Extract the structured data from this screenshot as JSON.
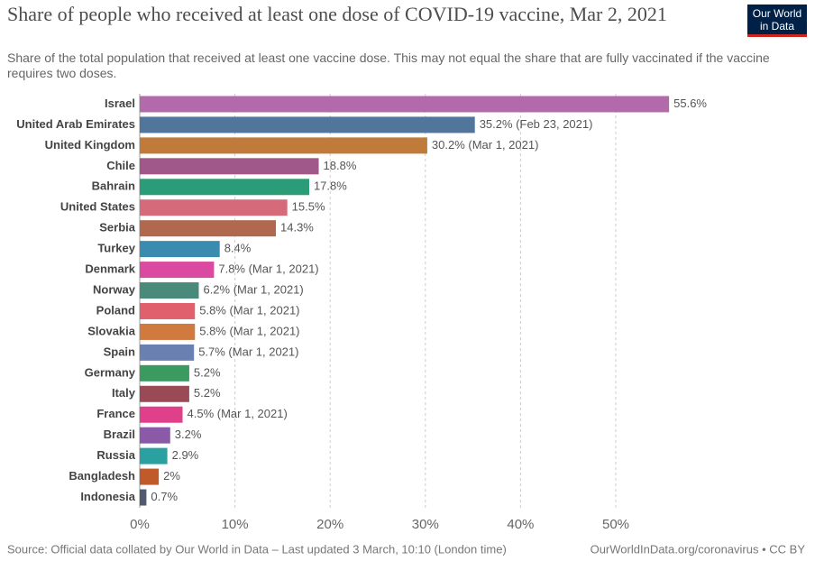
{
  "chart_data": {
    "type": "bar",
    "orientation": "horizontal",
    "title": "Share of people who received at least one dose of COVID-19 vaccine, Mar 2, 2021",
    "subtitle": "Share of the total population that received at least one vaccine dose. This may not equal the share that are fully vaccinated if the vaccine requires two doses.",
    "logo": [
      "Our World",
      "in Data"
    ],
    "categories": [
      "Israel",
      "United Arab Emirates",
      "United Kingdom",
      "Chile",
      "Bahrain",
      "United States",
      "Serbia",
      "Turkey",
      "Denmark",
      "Norway",
      "Poland",
      "Slovakia",
      "Spain",
      "Germany",
      "Italy",
      "France",
      "Brazil",
      "Russia",
      "Bangladesh",
      "Indonesia"
    ],
    "values": [
      55.6,
      35.2,
      30.2,
      18.8,
      17.8,
      15.5,
      14.3,
      8.4,
      7.8,
      6.2,
      5.8,
      5.8,
      5.7,
      5.2,
      5.2,
      4.5,
      3.2,
      2.9,
      2,
      0.7
    ],
    "value_labels": [
      "55.6%",
      "35.2% (Feb 23, 2021)",
      "30.2% (Mar 1, 2021)",
      "18.8%",
      "17.8%",
      "15.5%",
      "14.3%",
      "8.4%",
      "7.8% (Mar 1, 2021)",
      "6.2% (Mar 1, 2021)",
      "5.8% (Mar 1, 2021)",
      "5.8% (Mar 1, 2021)",
      "5.7% (Mar 1, 2021)",
      "5.2%",
      "5.2%",
      "4.5% (Mar 1, 2021)",
      "3.2%",
      "2.9%",
      "2%",
      "0.7%"
    ],
    "colors": [
      "#b26aab",
      "#52769b",
      "#c07a3a",
      "#a0588a",
      "#2a9d78",
      "#d46a7a",
      "#b0684e",
      "#3a8bb0",
      "#d94aa0",
      "#4a8a7a",
      "#e0606e",
      "#d07a40",
      "#6a80b0",
      "#3a9a60",
      "#9a4a55",
      "#e0408a",
      "#8a5aa8",
      "#2aa0a0",
      "#c05a2a",
      "#505a70"
    ],
    "xlim": [
      0,
      60
    ],
    "xticks": [
      {
        "value": 0,
        "label": "0%"
      },
      {
        "value": 10,
        "label": "10%"
      },
      {
        "value": 20,
        "label": "20%"
      },
      {
        "value": 30,
        "label": "30%"
      },
      {
        "value": 40,
        "label": "40%"
      },
      {
        "value": 50,
        "label": "50%"
      }
    ],
    "grid": true,
    "source": "Source: Official data collated by Our World in Data – Last updated 3 March, 10:10 (London time)",
    "footer_right": "OurWorldInData.org/coronavirus • CC BY"
  }
}
